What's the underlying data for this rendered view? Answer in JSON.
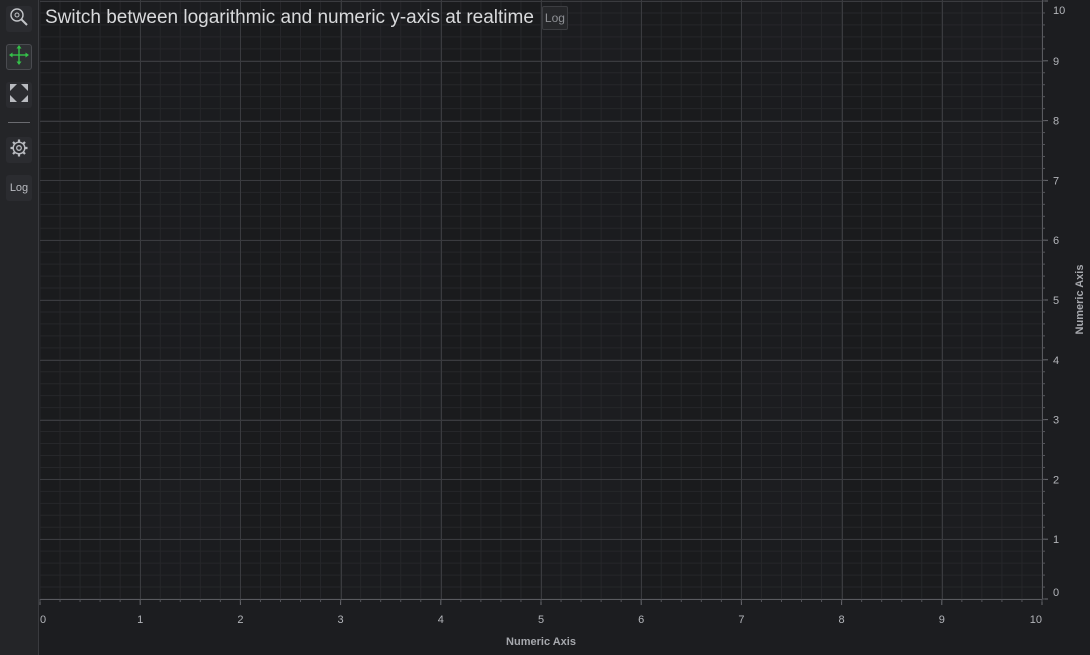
{
  "title": "Switch between logarithmic and numeric y-axis at realtime",
  "title_log_button": "Log",
  "toolbar": {
    "zoom_icon": "zoom-icon",
    "pan_icon": "pan-move-icon",
    "fit_icon": "fit-screen-icon",
    "settings_icon": "gear-icon",
    "log_label": "Log"
  },
  "colors": {
    "background": "#1c1d20",
    "grid_major": "#3a3b3f",
    "grid_minor": "#26272a",
    "band_dark": "#1a1b1d",
    "pan_active": "#35c24a"
  },
  "chart_data": {
    "type": "line",
    "series": [],
    "xlabel": "Numeric Axis",
    "ylabel": "Numeric Axis",
    "xlim": [
      0,
      10
    ],
    "ylim": [
      0,
      10
    ],
    "x_ticks": [
      "0",
      "1",
      "2",
      "3",
      "4",
      "5",
      "6",
      "7",
      "8",
      "9",
      "10"
    ],
    "y_ticks": [
      "0",
      "1",
      "2",
      "3",
      "4",
      "5",
      "6",
      "7",
      "8",
      "9",
      "10"
    ],
    "grid": true,
    "y_axis_side": "right"
  }
}
